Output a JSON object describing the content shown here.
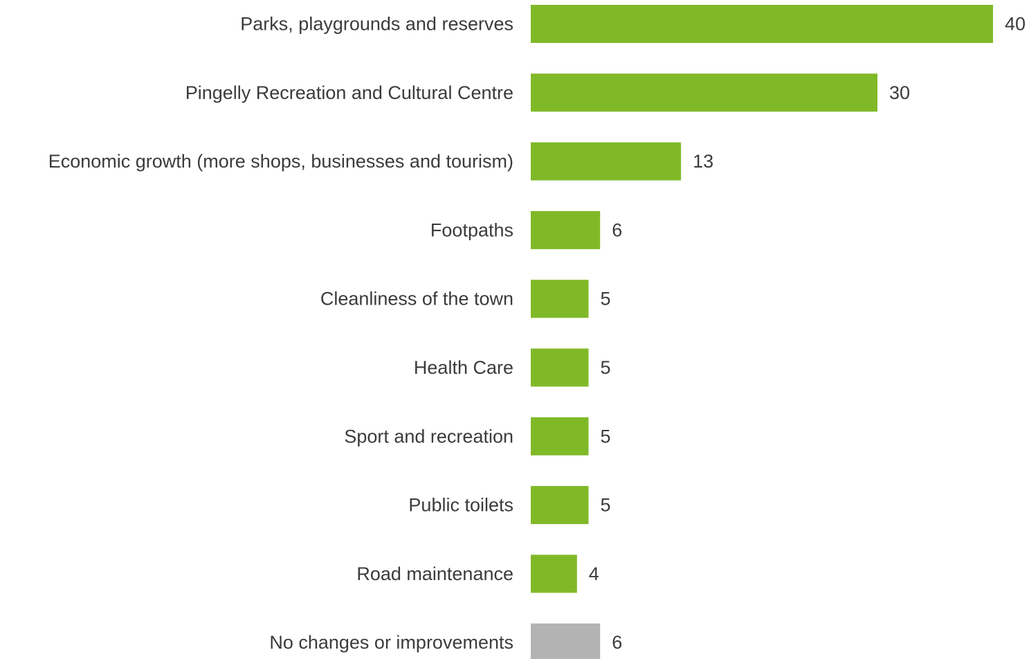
{
  "chart_data": {
    "type": "bar",
    "orientation": "horizontal",
    "categories": [
      "Parks, playgrounds and reserves",
      "Pingelly Recreation and Cultural Centre",
      "Economic growth (more shops, businesses and tourism)",
      "Footpaths",
      "Cleanliness of the town",
      "Health Care",
      "Sport and recreation",
      "Public toilets",
      "Road maintenance",
      "No changes or improvements"
    ],
    "values": [
      40,
      30,
      13,
      6,
      5,
      5,
      5,
      5,
      4,
      6
    ],
    "data_labels": [
      "40",
      "30",
      "13",
      "6",
      "5",
      "5",
      "5",
      "5",
      "4",
      "6"
    ],
    "bar_colors": [
      "#80b928",
      "#80b928",
      "#80b928",
      "#80b928",
      "#80b928",
      "#80b928",
      "#80b928",
      "#80b928",
      "#80b928",
      "#b3b3b3"
    ],
    "title": "",
    "xlabel": "",
    "ylabel": "",
    "xlim": [
      0,
      40
    ],
    "grid": false,
    "legend": "none"
  },
  "colors": {
    "accent": "#80b928",
    "neutral_bar": "#b3b3b3",
    "text": "#3b3b3b"
  }
}
